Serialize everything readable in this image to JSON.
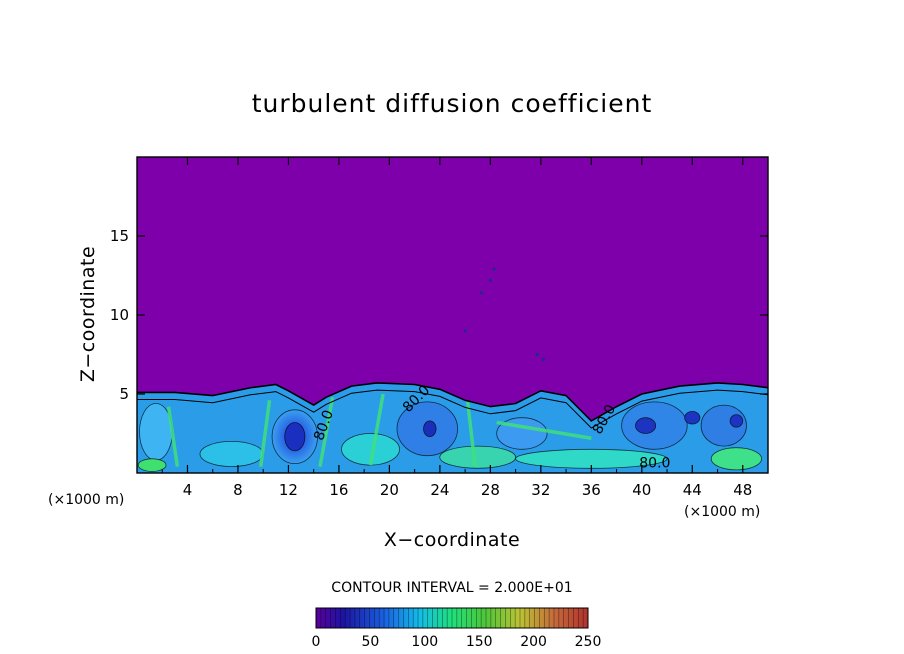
{
  "chart_data": {
    "type": "heatmap",
    "title": "turbulent diffusion coefficient",
    "xlabel": "X−coordinate",
    "ylabel": "Z−coordinate",
    "x_unit_left": "(×1000 m)",
    "x_unit_right": "(×1000 m)",
    "xlim": [
      0,
      50
    ],
    "ylim": [
      0,
      20
    ],
    "x_ticks": [
      4,
      8,
      12,
      16,
      20,
      24,
      28,
      32,
      36,
      40,
      44,
      48
    ],
    "x_tick_labels": [
      "4",
      "8",
      "12",
      "16",
      "20",
      "24",
      "28",
      "32",
      "36",
      "40",
      "44",
      "48"
    ],
    "y_ticks": [
      5,
      10,
      15
    ],
    "y_tick_labels": [
      "5",
      "10",
      "15"
    ],
    "contour_interval_text": "CONTOUR INTERVAL = 2.000E+01",
    "contour_labels": [
      "80.0",
      "80.0",
      "80.0",
      "80.0"
    ],
    "colorbar": {
      "min": 0,
      "max": 250,
      "ticks": [
        0,
        50,
        100,
        150,
        200,
        250
      ],
      "tick_labels": [
        "0",
        "50",
        "100",
        "150",
        "200",
        "250"
      ]
    },
    "boundary_layer_top": [
      [
        0,
        5.1
      ],
      [
        3,
        5.1
      ],
      [
        6,
        4.9
      ],
      [
        9,
        5.4
      ],
      [
        11,
        5.6
      ],
      [
        12,
        5.2
      ],
      [
        14,
        4.3
      ],
      [
        15,
        4.8
      ],
      [
        17,
        5.5
      ],
      [
        19,
        5.7
      ],
      [
        22,
        5.6
      ],
      [
        24,
        5.3
      ],
      [
        26,
        4.6
      ],
      [
        28,
        4.2
      ],
      [
        30,
        4.4
      ],
      [
        32,
        5.2
      ],
      [
        34,
        4.9
      ],
      [
        36,
        3.3
      ],
      [
        38,
        4.2
      ],
      [
        40,
        5.0
      ],
      [
        43,
        5.5
      ],
      [
        46,
        5.7
      ],
      [
        48,
        5.6
      ],
      [
        50,
        5.4
      ]
    ],
    "colors": {
      "background_field": "#7e00ab",
      "colorbar_stops": [
        "#6400a0",
        "#1e1aa8",
        "#1c6ee8",
        "#16c4ec",
        "#22e67a",
        "#58cd3b",
        "#c4c837",
        "#c6643a",
        "#b0342e"
      ]
    }
  }
}
